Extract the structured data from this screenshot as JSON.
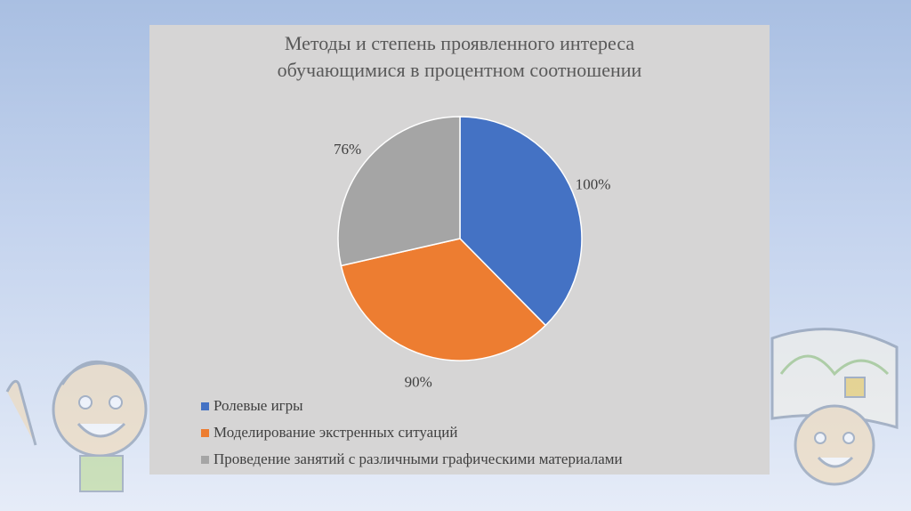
{
  "colors": {
    "series": [
      "#4472c4",
      "#ed7d31",
      "#a5a5a5"
    ],
    "panel": "#d6d5d5",
    "text": "#404040"
  },
  "chart_data": {
    "type": "pie",
    "title_lines": [
      "Методы и степень проявленного интереса",
      "обучающимися в процентном соотношении"
    ],
    "categories": [
      "Ролевые игры",
      "Моделирование экстренных ситуаций",
      "Проведение занятий с различными графическими материалами"
    ],
    "values": [
      100,
      90,
      76
    ],
    "data_labels": [
      "100%",
      "90%",
      "76%"
    ],
    "legend_position": "bottom-left"
  }
}
